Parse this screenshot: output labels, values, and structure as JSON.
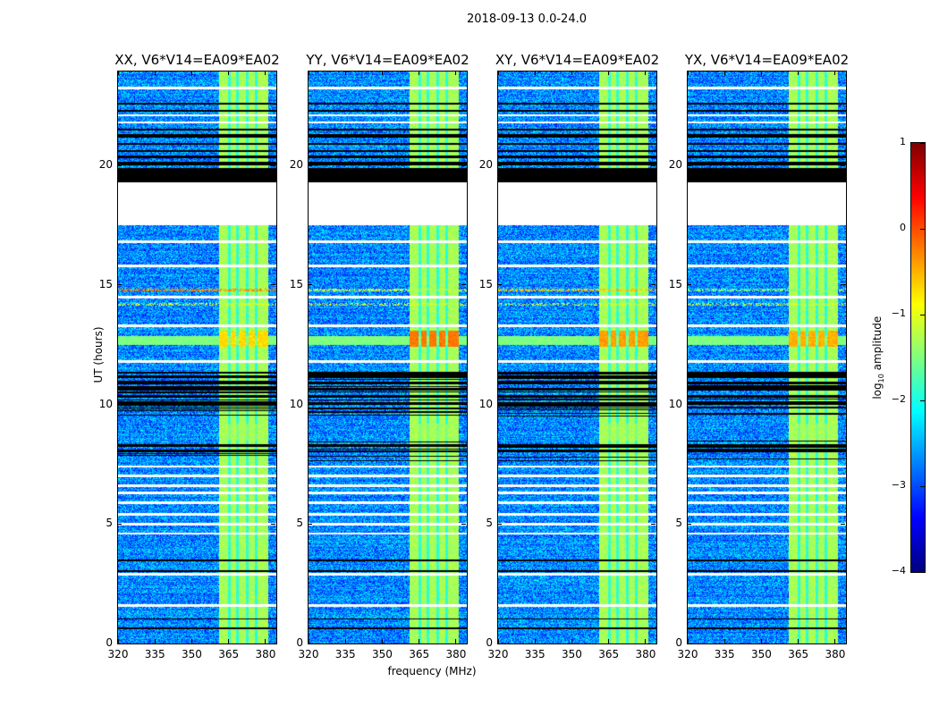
{
  "suptitle": "2018-09-13 0.0-24.0",
  "chart_data": {
    "type": "heatmap",
    "xlabel": "frequency (MHz)",
    "ylabel": "UT (hours)",
    "xlim": [
      320,
      384.4
    ],
    "ylim": [
      0,
      23.93
    ],
    "xticks": [
      "320",
      "335",
      "350",
      "365",
      "380"
    ],
    "xtick_values": [
      320,
      335,
      350,
      365,
      380
    ],
    "yticks": [
      "0",
      "5",
      "10",
      "15",
      "20"
    ],
    "ytick_values": [
      0,
      5,
      10,
      15,
      20
    ],
    "panels": [
      {
        "title": "XX, V6*V14=EA09*EA02",
        "event_level": -0.7,
        "line15_level": -0.3
      },
      {
        "title": "YY, V6*V14=EA09*EA02",
        "event_level": -0.2,
        "line15_level": -1.2
      },
      {
        "title": "XY, V6*V14=EA09*EA02",
        "event_level": -0.4,
        "line15_level": -0.6
      },
      {
        "title": "YX, V6*V14=EA09*EA02",
        "event_level": -0.5,
        "line15_level": -1.5
      }
    ],
    "background_level": -2.7,
    "rfi_band_mhz": [
      361,
      381
    ],
    "rfi_band_level": -1.3,
    "event_hours": [
      12.4,
      13.1
    ],
    "flagged_hours": [
      [
        17.5,
        19.3
      ],
      [
        23.2,
        23.3
      ],
      [
        22.05,
        22.15
      ],
      [
        21.75,
        21.85
      ],
      [
        16.75,
        16.85
      ],
      [
        15.75,
        15.85
      ],
      [
        14.45,
        14.55
      ],
      [
        13.25,
        13.35
      ],
      [
        11.75,
        11.85
      ],
      [
        7.35,
        7.45
      ],
      [
        6.95,
        7.05
      ],
      [
        6.55,
        6.65
      ],
      [
        6.25,
        6.35
      ],
      [
        5.85,
        5.95
      ],
      [
        5.35,
        5.45
      ],
      [
        4.95,
        5.05
      ],
      [
        4.55,
        4.65
      ],
      [
        2.85,
        2.95
      ],
      [
        1.55,
        1.65
      ]
    ],
    "black_hours": [
      [
        19.3,
        19.9
      ],
      [
        20.0,
        20.15
      ],
      [
        20.3,
        20.4
      ],
      [
        20.55,
        20.65
      ],
      [
        20.85,
        20.95
      ],
      [
        21.15,
        21.3
      ],
      [
        21.45,
        21.55
      ],
      [
        22.25,
        22.32
      ],
      [
        22.55,
        22.62
      ],
      [
        10.0,
        10.1
      ],
      [
        10.3,
        10.38
      ],
      [
        10.6,
        10.7
      ],
      [
        10.85,
        10.95
      ],
      [
        11.1,
        11.2
      ],
      [
        11.3,
        11.38
      ],
      [
        8.0,
        8.08
      ],
      [
        8.25,
        8.33
      ],
      [
        3.0,
        3.06
      ],
      [
        3.45,
        3.52
      ],
      [
        1.0,
        1.06
      ],
      [
        0.6,
        0.66
      ]
    ],
    "colorbar": {
      "label": "log10 amplitude",
      "label_main": "log",
      "label_sub": "10",
      "label_rest": " amplitude",
      "range": [
        -4,
        1
      ],
      "ticks": [
        "1",
        "0",
        "−1",
        "−2",
        "−3",
        "−4"
      ],
      "tick_values": [
        1,
        0,
        -1,
        -2,
        -3,
        -4
      ],
      "colormap": "jet"
    }
  }
}
